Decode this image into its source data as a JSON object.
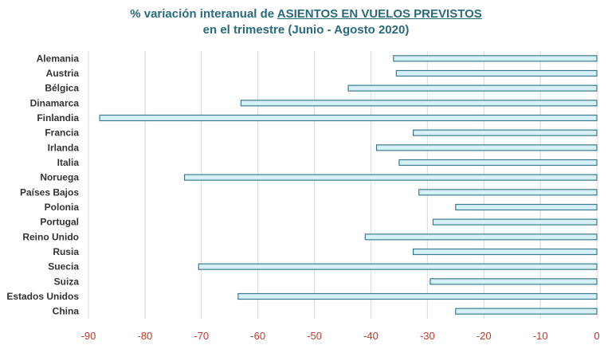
{
  "chart_data": {
    "type": "bar",
    "orientation": "horizontal",
    "title_line1_prefix": "% variación interanual de ",
    "title_line1_emph": "ASIENTOS EN VUELOS PREVISTOS",
    "title_line2": "en el trimestre (Junio - Agosto 2020)",
    "categories": [
      "Alemania",
      "Austria",
      "Bélgica",
      "Dinamarca",
      "Finlandia",
      "Francia",
      "Irlanda",
      "Italia",
      "Noruega",
      "Países Bajos",
      "Polonia",
      "Portugal",
      "Reino Unido",
      "Rusia",
      "Suecia",
      "Suiza",
      "Estados Unidos",
      "China"
    ],
    "values": [
      -36,
      -35.5,
      -44,
      -63,
      -88,
      -32.5,
      -39,
      -35,
      -73,
      -31.5,
      -25,
      -29,
      -41,
      -32.5,
      -70.5,
      -29.5,
      -63.5,
      -25
    ],
    "xlim": [
      -90,
      0
    ],
    "xticks": [
      "-90",
      "-80",
      "-70",
      "-60",
      "-50",
      "-40",
      "-30",
      "-20",
      "-10",
      "0"
    ],
    "grid": true,
    "colors": {
      "bar_fill": "#d6f0f6",
      "bar_stroke": "#3a7a8f",
      "title": "#2a6a7a",
      "tick": "#c0392b",
      "grid": "#d9d9d9"
    }
  }
}
